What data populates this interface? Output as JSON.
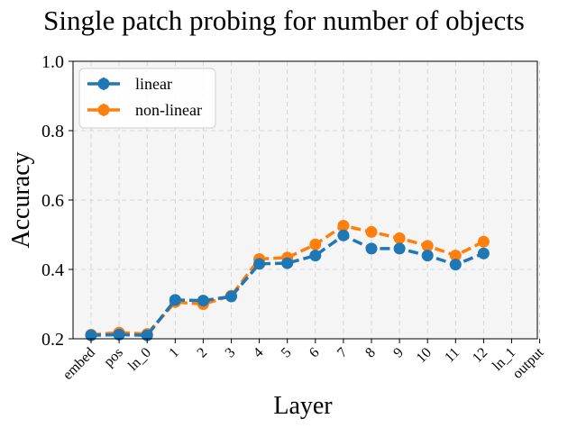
{
  "chart_data": {
    "type": "line",
    "title": "Single patch probing for number of objects",
    "xlabel": "Layer",
    "ylabel": "Accuracy",
    "categories": [
      "embed",
      "pos",
      "ln_0",
      "1",
      "2",
      "3",
      "4",
      "5",
      "6",
      "7",
      "8",
      "9",
      "10",
      "11",
      "12",
      "ln_1",
      "output"
    ],
    "ylim": [
      0.2,
      1.0
    ],
    "yticks": [
      "0.2",
      "0.4",
      "0.6",
      "0.8",
      "1.0"
    ],
    "grid": true,
    "legend_position": "top-left",
    "series": [
      {
        "name": "linear",
        "color": "#1f77b4",
        "values": [
          0.21,
          0.212,
          0.21,
          0.312,
          0.31,
          0.322,
          0.416,
          0.418,
          0.44,
          0.498,
          0.46,
          0.46,
          0.44,
          0.414,
          0.446,
          null,
          null
        ]
      },
      {
        "name": "non-linear",
        "color": "#ff7f0e",
        "values": [
          0.212,
          0.218,
          0.214,
          0.306,
          0.3,
          0.324,
          0.43,
          0.434,
          0.472,
          0.526,
          0.508,
          0.49,
          0.468,
          0.44,
          0.48,
          null,
          null
        ]
      }
    ]
  }
}
